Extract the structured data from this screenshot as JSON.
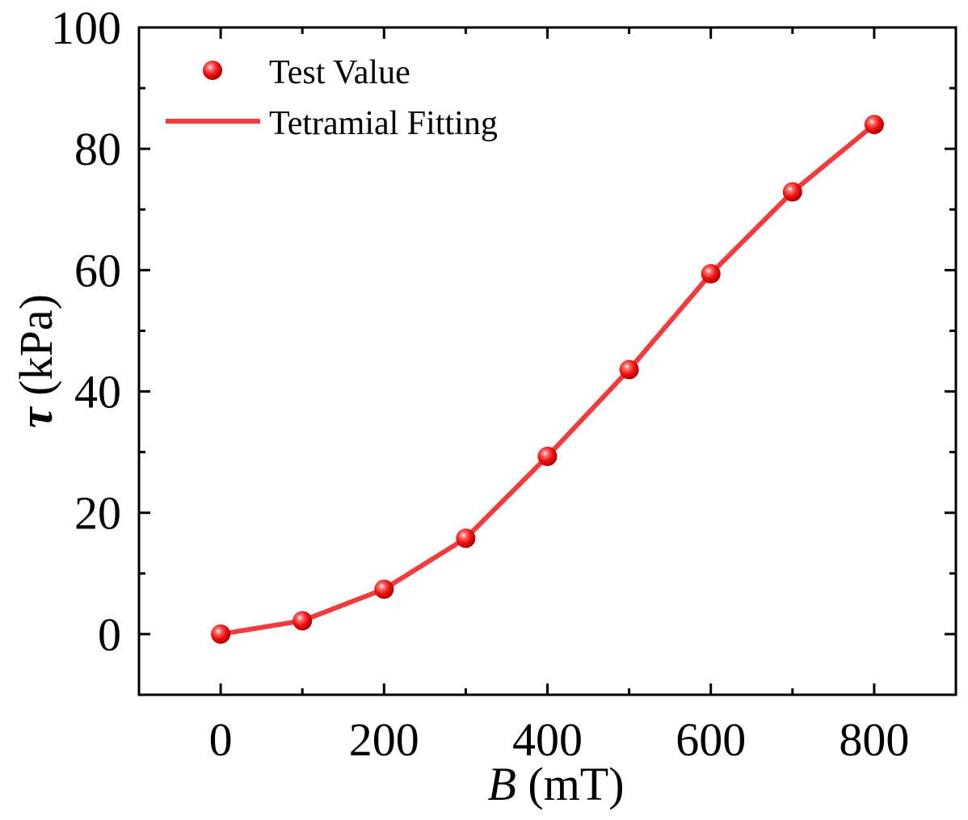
{
  "colors": {
    "series": "#f03c3c",
    "axis": "#000000",
    "background": "#ffffff"
  },
  "chart_data": {
    "type": "line",
    "title": "",
    "xlabel_var": "B",
    "xlabel_unit": " (mT)",
    "ylabel_var": "τ",
    "ylabel_unit": " (kPa)",
    "xlim": [
      -100,
      900
    ],
    "ylim": [
      -10,
      100
    ],
    "xticks": [
      0,
      200,
      400,
      600,
      800
    ],
    "yticks": [
      0,
      20,
      40,
      60,
      80,
      100
    ],
    "x_minor_step": 100,
    "y_minor_step": 10,
    "grid": false,
    "legend_position": "top-left",
    "series": [
      {
        "name": "Test Value",
        "kind": "scatter",
        "x": [
          0,
          100,
          200,
          300,
          400,
          500,
          600,
          700,
          800
        ],
        "y": [
          0,
          2.2,
          7.4,
          15.8,
          29.3,
          43.6,
          59.4,
          72.9,
          84.0
        ]
      },
      {
        "name": "Tetramial Fitting",
        "kind": "line",
        "x": [
          0,
          100,
          200,
          300,
          400,
          500,
          600,
          700,
          800
        ],
        "y": [
          0,
          2.2,
          7.4,
          15.8,
          29.3,
          43.6,
          59.4,
          72.9,
          84.0
        ]
      }
    ]
  }
}
